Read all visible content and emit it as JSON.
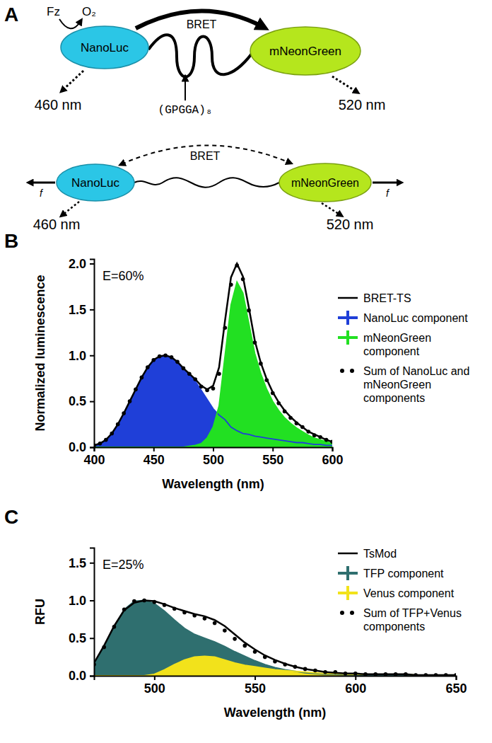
{
  "diagram": {
    "panel_label": "A",
    "top": {
      "fz": "Fz",
      "o2": "O₂",
      "bret": "BRET",
      "donor": "NanoLuc",
      "acceptor": "mNeonGreen",
      "linker": "(GPGGA)₈",
      "donor_emission": "460 nm",
      "acceptor_emission": "520 nm"
    },
    "bottom": {
      "bret": "BRET",
      "donor": "NanoLuc",
      "acceptor": "mNeonGreen",
      "force_left": "f",
      "force_right": "f",
      "donor_emission": "460 nm",
      "acceptor_emission": "520 nm"
    }
  },
  "chart_data": [
    {
      "type": "line",
      "panel_label": "B",
      "annotation": "E=60%",
      "xlabel": "Wavelength (nm)",
      "ylabel": "Normalized luminescence",
      "x": [
        400,
        405,
        410,
        415,
        420,
        425,
        430,
        435,
        440,
        445,
        450,
        455,
        460,
        465,
        470,
        475,
        480,
        485,
        490,
        495,
        500,
        505,
        510,
        515,
        520,
        525,
        530,
        535,
        540,
        545,
        550,
        555,
        560,
        565,
        570,
        575,
        580,
        585,
        590,
        595,
        600
      ],
      "xlim": [
        400,
        600
      ],
      "xticks": [
        400,
        450,
        500,
        550,
        600
      ],
      "ylim": [
        0,
        2.05
      ],
      "yticks": [
        {
          "value": 0,
          "label": "0.0"
        },
        {
          "value": 0.5,
          "label": "0.5"
        },
        {
          "value": 1,
          "label": "1.0"
        },
        {
          "value": 1.5,
          "label": "1.5"
        },
        {
          "value": 2,
          "label": "2.0"
        }
      ],
      "legend": "right",
      "series": [
        {
          "name": "BRET-TS",
          "type": "line",
          "color": "#000000",
          "values": [
            0.02,
            0.04,
            0.08,
            0.15,
            0.25,
            0.37,
            0.5,
            0.63,
            0.76,
            0.87,
            0.95,
            0.99,
            1.0,
            0.98,
            0.93,
            0.86,
            0.8,
            0.74,
            0.67,
            0.63,
            0.67,
            0.87,
            1.38,
            1.85,
            2.0,
            1.86,
            1.52,
            1.16,
            0.92,
            0.74,
            0.6,
            0.49,
            0.4,
            0.33,
            0.27,
            0.22,
            0.17,
            0.14,
            0.11,
            0.08,
            0.06
          ]
        },
        {
          "name": "NanoLuc component",
          "type": "area",
          "color": "#1f3fd8",
          "values": [
            0.02,
            0.04,
            0.08,
            0.15,
            0.25,
            0.37,
            0.5,
            0.63,
            0.76,
            0.87,
            0.95,
            0.99,
            1.0,
            0.98,
            0.93,
            0.86,
            0.79,
            0.72,
            0.62,
            0.52,
            0.42,
            0.35,
            0.3,
            0.22,
            0.18,
            0.15,
            0.14,
            0.12,
            0.11,
            0.1,
            0.09,
            0.08,
            0.07,
            0.06,
            0.05,
            0.05,
            0.04,
            0.03,
            0.03,
            0.02,
            0.02
          ]
        },
        {
          "name": "mNeonGreen component",
          "type": "area",
          "color": "#22e022",
          "values": [
            0,
            0,
            0,
            0,
            0,
            0,
            0,
            0,
            0,
            0,
            0,
            0,
            0,
            0,
            0,
            0,
            0.01,
            0.02,
            0.04,
            0.1,
            0.22,
            0.45,
            1.0,
            1.55,
            1.8,
            1.68,
            1.35,
            1.02,
            0.8,
            0.63,
            0.5,
            0.4,
            0.32,
            0.26,
            0.21,
            0.17,
            0.13,
            0.1,
            0.08,
            0.06,
            0.04
          ]
        },
        {
          "name": "Sum of NanoLuc and mNeonGreen components",
          "type": "scatter",
          "marker": "circle",
          "color": "#000000",
          "values": [
            0.02,
            0.04,
            0.08,
            0.15,
            0.25,
            0.37,
            0.5,
            0.63,
            0.76,
            0.87,
            0.95,
            0.99,
            1.0,
            0.98,
            0.93,
            0.86,
            0.8,
            0.74,
            0.66,
            0.62,
            0.64,
            0.8,
            1.3,
            1.77,
            1.98,
            1.83,
            1.49,
            1.14,
            0.91,
            0.73,
            0.59,
            0.48,
            0.39,
            0.32,
            0.26,
            0.22,
            0.17,
            0.13,
            0.11,
            0.08,
            0.06
          ]
        }
      ]
    },
    {
      "type": "line",
      "panel_label": "C",
      "annotation": "E=25%",
      "xlabel": "Wavelength (nm)",
      "ylabel": "RFU",
      "x": [
        470,
        475,
        480,
        485,
        490,
        495,
        500,
        505,
        510,
        515,
        520,
        525,
        530,
        535,
        540,
        545,
        550,
        555,
        560,
        565,
        570,
        575,
        580,
        585,
        590,
        595,
        600,
        605,
        610,
        615,
        620,
        625,
        630,
        635,
        640,
        645,
        650
      ],
      "xlim": [
        470,
        650
      ],
      "xticks": [
        500,
        550,
        600,
        650
      ],
      "ylim": [
        0,
        1.7
      ],
      "yticks": [
        {
          "value": 0,
          "label": "0.0"
        },
        {
          "value": 0.5,
          "label": "0.5"
        },
        {
          "value": 1,
          "label": "1.0"
        },
        {
          "value": 1.5,
          "label": "1.5"
        }
      ],
      "legend": "upper right",
      "series": [
        {
          "name": "TsMod",
          "type": "line",
          "color": "#000000",
          "values": [
            0.17,
            0.4,
            0.66,
            0.87,
            0.97,
            1.0,
            0.99,
            0.95,
            0.9,
            0.86,
            0.82,
            0.79,
            0.74,
            0.66,
            0.55,
            0.44,
            0.35,
            0.27,
            0.21,
            0.16,
            0.12,
            0.09,
            0.07,
            0.05,
            0.04,
            0.03,
            0.03,
            0.02,
            0.02,
            0.02,
            0.02,
            0.02,
            0.01,
            0.01,
            0.01,
            0.01,
            0.01
          ]
        },
        {
          "name": "TFP component",
          "type": "area",
          "color": "#2f6f6f",
          "values": [
            0.15,
            0.38,
            0.65,
            0.88,
            0.99,
            1.0,
            0.96,
            0.86,
            0.74,
            0.63,
            0.55,
            0.5,
            0.45,
            0.39,
            0.32,
            0.26,
            0.2,
            0.15,
            0.11,
            0.08,
            0.06,
            0.04,
            0.03,
            0.02,
            0.02,
            0.01,
            0.01,
            0,
            0,
            0,
            0,
            0,
            0,
            0,
            0,
            0,
            0
          ]
        },
        {
          "name": "Venus component",
          "type": "area",
          "color": "#f2e21b",
          "values": [
            0,
            0,
            0,
            0,
            0,
            0,
            0.02,
            0.08,
            0.15,
            0.21,
            0.25,
            0.26,
            0.25,
            0.21,
            0.17,
            0.14,
            0.12,
            0.1,
            0.08,
            0.07,
            0.06,
            0.05,
            0.04,
            0.03,
            0.03,
            0.02,
            0.02,
            0.02,
            0.02,
            0.02,
            0.02,
            0.02,
            0.01,
            0.01,
            0.01,
            0.01,
            0.01
          ]
        },
        {
          "name": "Sum of TFP+Venus components",
          "type": "scatter",
          "marker": "circle",
          "color": "#000000",
          "values": [
            0.15,
            0.38,
            0.65,
            0.88,
            0.99,
            1.0,
            0.98,
            0.94,
            0.89,
            0.84,
            0.8,
            0.76,
            0.7,
            0.6,
            0.49,
            0.4,
            0.32,
            0.25,
            0.19,
            0.15,
            0.12,
            0.09,
            0.07,
            0.05,
            0.05,
            0.03,
            0.03,
            0.02,
            0.02,
            0.02,
            0.02,
            0.02,
            0.01,
            0.01,
            0.01,
            0.01,
            0.01
          ]
        }
      ]
    }
  ]
}
